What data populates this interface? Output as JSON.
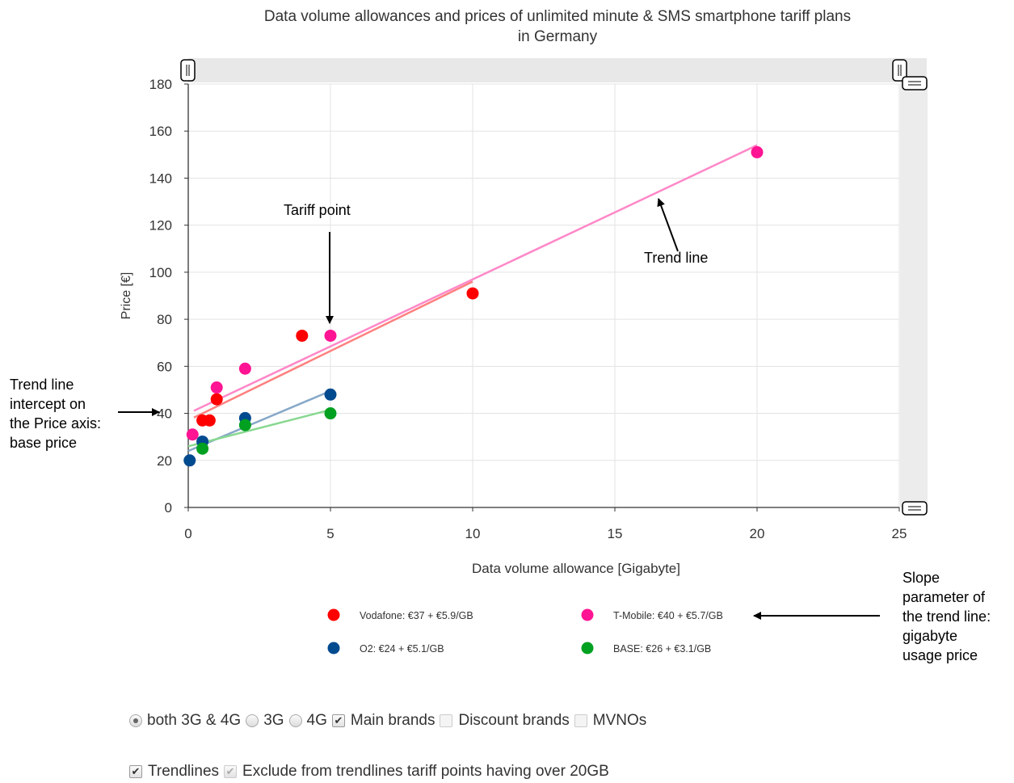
{
  "chart_data": {
    "type": "scatter",
    "title_lines": [
      "Data volume allowances and prices of unlimited minute & SMS smartphone tariff plans",
      "in Germany"
    ],
    "xlabel": "Data volume allowance [Gigabyte]",
    "ylabel": "Price [€]",
    "xlim": [
      0,
      25
    ],
    "ylim": [
      0,
      180
    ],
    "xticks": [
      0,
      5,
      10,
      15,
      20,
      25
    ],
    "yticks": [
      0,
      20,
      40,
      60,
      80,
      100,
      120,
      140,
      160,
      180
    ],
    "grid": true,
    "legend_position": "bottom",
    "series": [
      {
        "name": "Vodafone: €37 + €5.9/GB",
        "color": "#ff0000",
        "trend_color": "#ff8080",
        "points": [
          [
            0.5,
            37
          ],
          [
            0.75,
            37
          ],
          [
            1,
            46
          ],
          [
            4,
            73
          ],
          [
            10,
            91
          ]
        ],
        "trend": [
          [
            0.2,
            38.2
          ],
          [
            10,
            96
          ]
        ]
      },
      {
        "name": "T-Mobile: €40 + €5.7/GB",
        "color": "#ff1493",
        "trend_color": "#ff88c8",
        "points": [
          [
            0.15,
            31
          ],
          [
            1,
            51
          ],
          [
            2,
            59
          ],
          [
            5,
            73
          ],
          [
            20,
            151
          ]
        ],
        "trend": [
          [
            0.2,
            41.1
          ],
          [
            16.5,
            134
          ],
          [
            20,
            154
          ]
        ]
      },
      {
        "name": "O2: €24 + €5.1/GB",
        "color": "#004a8f",
        "trend_color": "#86a8c8",
        "points": [
          [
            0.05,
            20
          ],
          [
            0.5,
            28
          ],
          [
            2,
            38
          ],
          [
            5,
            48
          ]
        ],
        "trend": [
          [
            0,
            24
          ],
          [
            5,
            49.5
          ]
        ]
      },
      {
        "name": "BASE: €26 + €3.1/GB",
        "color": "#00a020",
        "trend_color": "#88d890",
        "points": [
          [
            0.5,
            25
          ],
          [
            2,
            35
          ],
          [
            5,
            40
          ]
        ],
        "trend": [
          [
            0,
            26
          ],
          [
            5,
            41.5
          ]
        ]
      }
    ],
    "annotations": {
      "tariff_point": "Tariff point",
      "trend_line": "Trend line",
      "intercept": [
        "Trend line",
        "intercept on",
        "the Price axis:",
        "base price"
      ],
      "slope": [
        "Slope",
        "parameter of",
        "the trend line:",
        "gigabyte",
        "usage price"
      ]
    }
  },
  "controls": {
    "row1": [
      {
        "kind": "radio",
        "checked": true,
        "label": "both 3G & 4G"
      },
      {
        "kind": "radio",
        "checked": false,
        "label": "3G"
      },
      {
        "kind": "radio",
        "checked": false,
        "label": "4G"
      },
      {
        "kind": "checkbox",
        "checked": true,
        "label": "Main brands"
      },
      {
        "kind": "checkbox",
        "checked": false,
        "label": "Discount brands"
      },
      {
        "kind": "checkbox",
        "checked": false,
        "label": "MVNOs"
      }
    ],
    "row2": [
      {
        "kind": "checkbox",
        "checked": true,
        "label": "Trendlines"
      },
      {
        "kind": "checkbox",
        "checked": true,
        "disabled": true,
        "label": "Exclude from trendlines tariff points having over 20GB"
      }
    ]
  }
}
